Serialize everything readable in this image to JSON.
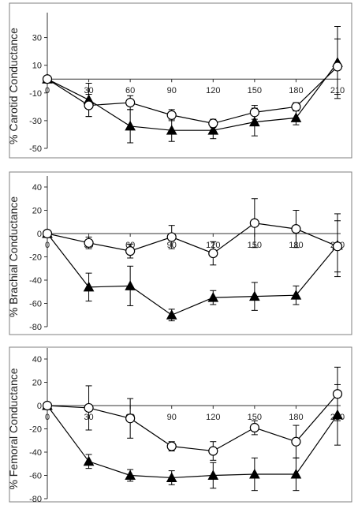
{
  "chart_data": [
    {
      "type": "line",
      "ylabel": "% Carotid Conductance",
      "x": [
        0,
        30,
        60,
        90,
        120,
        150,
        180,
        210
      ],
      "ylim": [
        -50,
        40
      ],
      "yticks": [
        30,
        10,
        -10,
        -30,
        -50
      ],
      "grid": false,
      "series": [
        {
          "marker": "triangle-filled",
          "values": [
            0,
            -15,
            -34,
            -37,
            -37,
            -31,
            -28,
            12
          ],
          "err": [
            0,
            12,
            12,
            8,
            6,
            10,
            5,
            26
          ]
        },
        {
          "marker": "circle-open",
          "values": [
            0,
            -19,
            -17,
            -26,
            -32,
            -24,
            -20,
            9
          ],
          "err": [
            0,
            8,
            5,
            4,
            3,
            5,
            3,
            20
          ]
        }
      ]
    },
    {
      "type": "line",
      "ylabel": "% Brachial Conductance",
      "x": [
        0,
        30,
        60,
        90,
        120,
        150,
        180,
        210
      ],
      "ylim": [
        -80,
        40
      ],
      "yticks": [
        40,
        20,
        0,
        -20,
        -40,
        -60,
        -80
      ],
      "grid": false,
      "series": [
        {
          "marker": "triangle-filled",
          "values": [
            0,
            -46,
            -45,
            -70,
            -55,
            -54,
            -53,
            -10
          ],
          "err": [
            0,
            12,
            17,
            5,
            6,
            12,
            8,
            27
          ]
        },
        {
          "marker": "circle-open",
          "values": [
            0,
            -8,
            -15,
            -3,
            -17,
            9,
            4,
            -11
          ],
          "err": [
            0,
            5,
            6,
            10,
            10,
            21,
            16,
            22
          ]
        }
      ]
    },
    {
      "type": "line",
      "ylabel": "% Femoral Conductance",
      "x": [
        0,
        30,
        60,
        90,
        120,
        150,
        180,
        210
      ],
      "ylim": [
        -80,
        40
      ],
      "yticks": [
        40,
        20,
        0,
        -20,
        -40,
        -60,
        -80
      ],
      "grid": false,
      "series": [
        {
          "marker": "triangle-filled",
          "values": [
            0,
            -48,
            -60,
            -62,
            -60,
            -59,
            -59,
            -8
          ],
          "err": [
            0,
            6,
            5,
            6,
            11,
            14,
            14,
            26
          ]
        },
        {
          "marker": "circle-open",
          "values": [
            0,
            -2,
            -11,
            -35,
            -39,
            -19,
            -31,
            10
          ],
          "err": [
            0,
            19,
            17,
            4,
            8,
            6,
            14,
            23
          ]
        }
      ]
    }
  ]
}
